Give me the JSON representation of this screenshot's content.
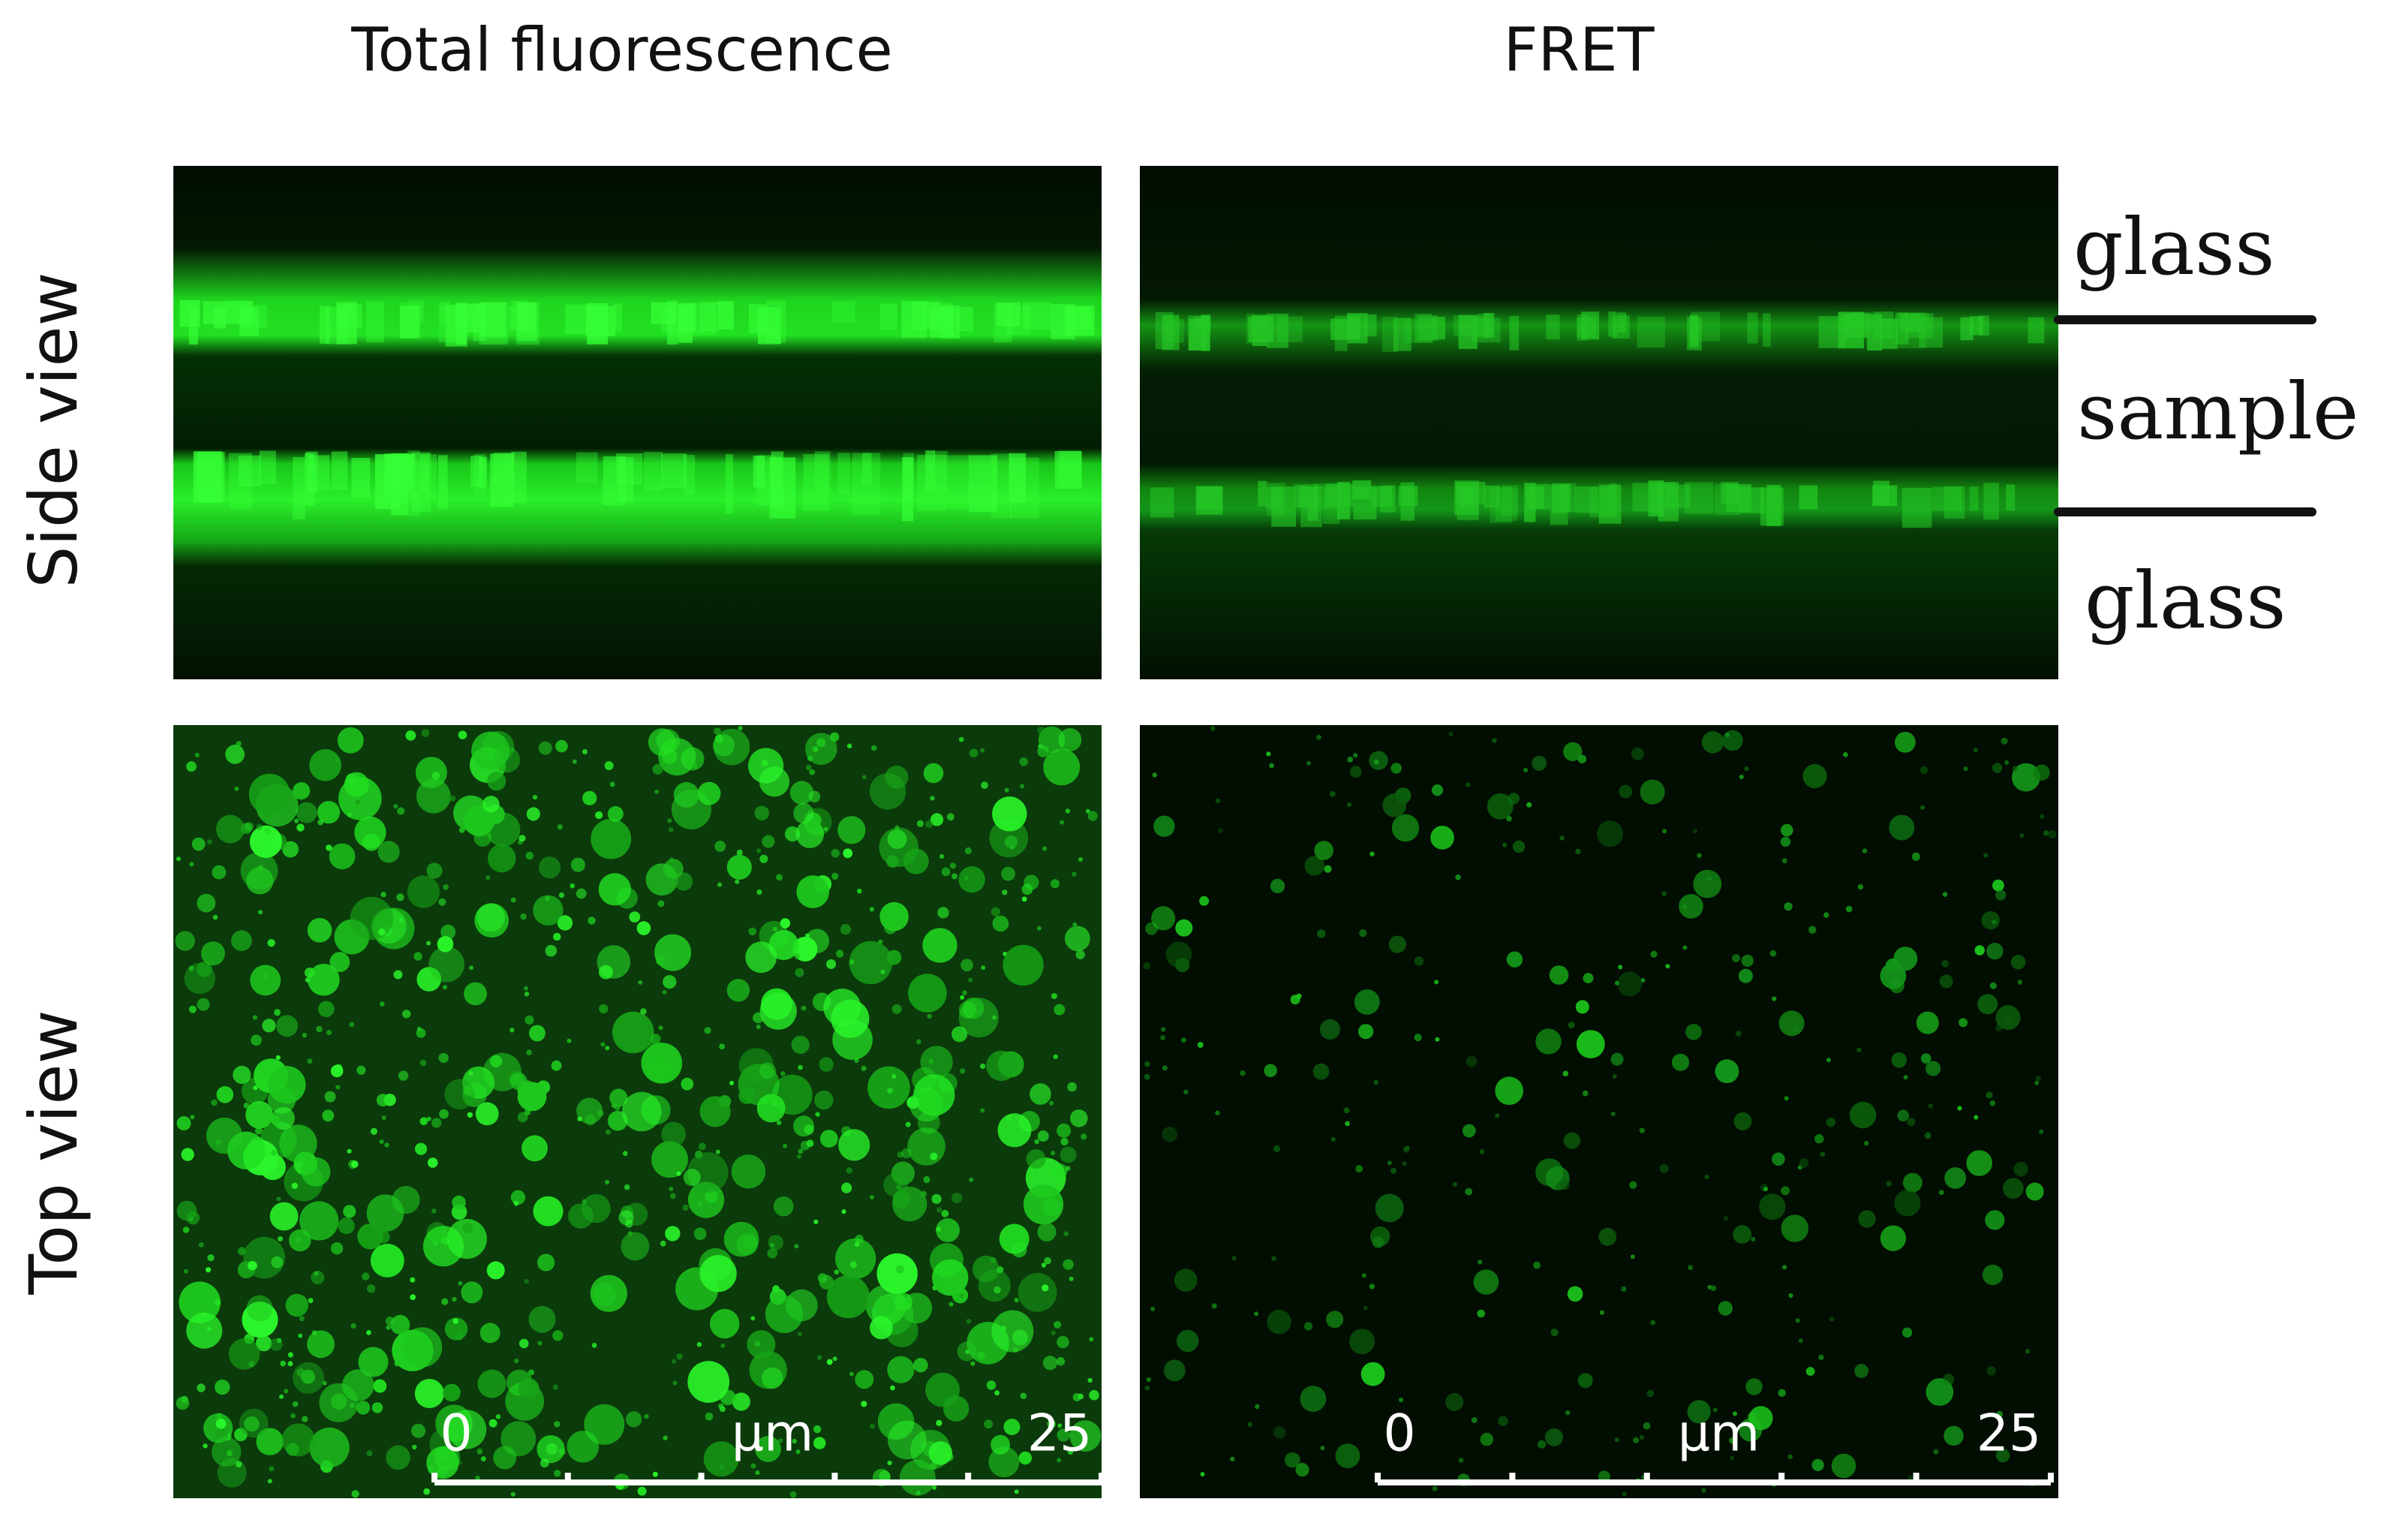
{
  "columns": [
    {
      "title": "Total fluorescence"
    },
    {
      "title": "FRET"
    }
  ],
  "rows": [
    {
      "label": "Side view"
    },
    {
      "label": "Top view"
    }
  ],
  "side_view_annotations": [
    "glass",
    "sample",
    "glass"
  ],
  "scale_bars": [
    {
      "start": "0",
      "unit": "µm",
      "end": "25"
    },
    {
      "start": "0",
      "unit": "µm",
      "end": "25"
    }
  ]
}
